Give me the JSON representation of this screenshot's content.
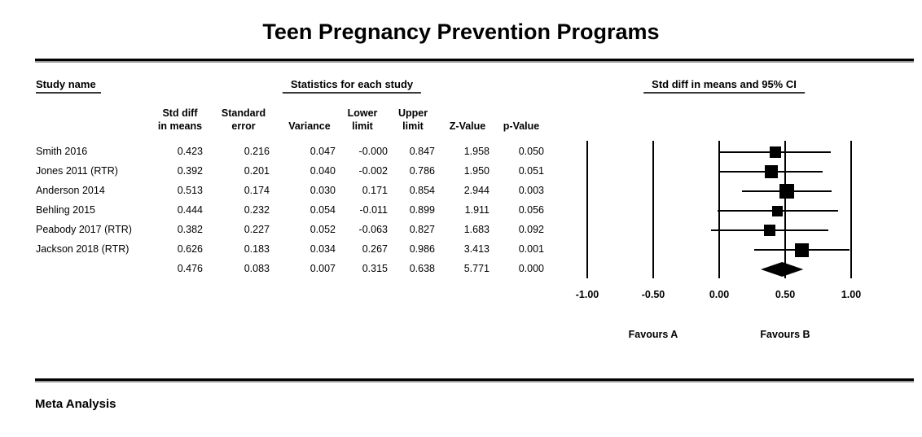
{
  "report": {
    "title": "Teen Pregnancy Prevention Programs",
    "footer_label": "Meta Analysis",
    "headers": {
      "study": "Study name",
      "stats": "Statistics for each study",
      "plot": "Std diff in means and 95% CI"
    }
  },
  "chart_data": {
    "type": "forest",
    "title": "Teen Pregnancy Prevention Programs",
    "stat_columns": [
      {
        "line1": "Std diff",
        "line2": "in means"
      },
      {
        "line1": "Standard",
        "line2": "error"
      },
      {
        "line1": "",
        "line2": "Variance"
      },
      {
        "line1": "Lower",
        "line2": "limit"
      },
      {
        "line1": "Upper",
        "line2": "limit"
      },
      {
        "line1": "",
        "line2": "Z-Value"
      },
      {
        "line1": "",
        "line2": "p-Value"
      }
    ],
    "rows": [
      {
        "name": "Smith 2016",
        "is_summary": false,
        "cells": [
          "0.423",
          "0.216",
          "0.047",
          "-0.000",
          "0.847",
          "1.958",
          "0.050"
        ]
      },
      {
        "name": "Jones 2011 (RTR)",
        "is_summary": false,
        "cells": [
          "0.392",
          "0.201",
          "0.040",
          "-0.002",
          "0.786",
          "1.950",
          "0.051"
        ]
      },
      {
        "name": "Anderson 2014",
        "is_summary": false,
        "cells": [
          "0.513",
          "0.174",
          "0.030",
          "0.171",
          "0.854",
          "2.944",
          "0.003"
        ]
      },
      {
        "name": "Behling 2015",
        "is_summary": false,
        "cells": [
          "0.444",
          "0.232",
          "0.054",
          "-0.011",
          "0.899",
          "1.911",
          "0.056"
        ]
      },
      {
        "name": "Peabody 2017 (RTR)",
        "is_summary": false,
        "cells": [
          "0.382",
          "0.227",
          "0.052",
          "-0.063",
          "0.827",
          "1.683",
          "0.092"
        ]
      },
      {
        "name": "Jackson 2018 (RTR)",
        "is_summary": false,
        "cells": [
          "0.626",
          "0.183",
          "0.034",
          "0.267",
          "0.986",
          "3.413",
          "0.001"
        ]
      },
      {
        "name": "",
        "is_summary": true,
        "cells": [
          "0.476",
          "0.083",
          "0.007",
          "0.315",
          "0.638",
          "5.771",
          "0.000"
        ]
      }
    ],
    "x_axis": {
      "min": -1.0,
      "max": 1.0,
      "ticks": [
        -1.0,
        -0.5,
        0.0,
        0.5,
        1.0
      ],
      "tick_labels": [
        "-1.00",
        "-0.50",
        "0.00",
        "0.50",
        "1.00"
      ]
    },
    "favours_left": "Favours A",
    "favours_right": "Favours B",
    "colors": {
      "ink": "#000000",
      "background": "#ffffff"
    }
  }
}
